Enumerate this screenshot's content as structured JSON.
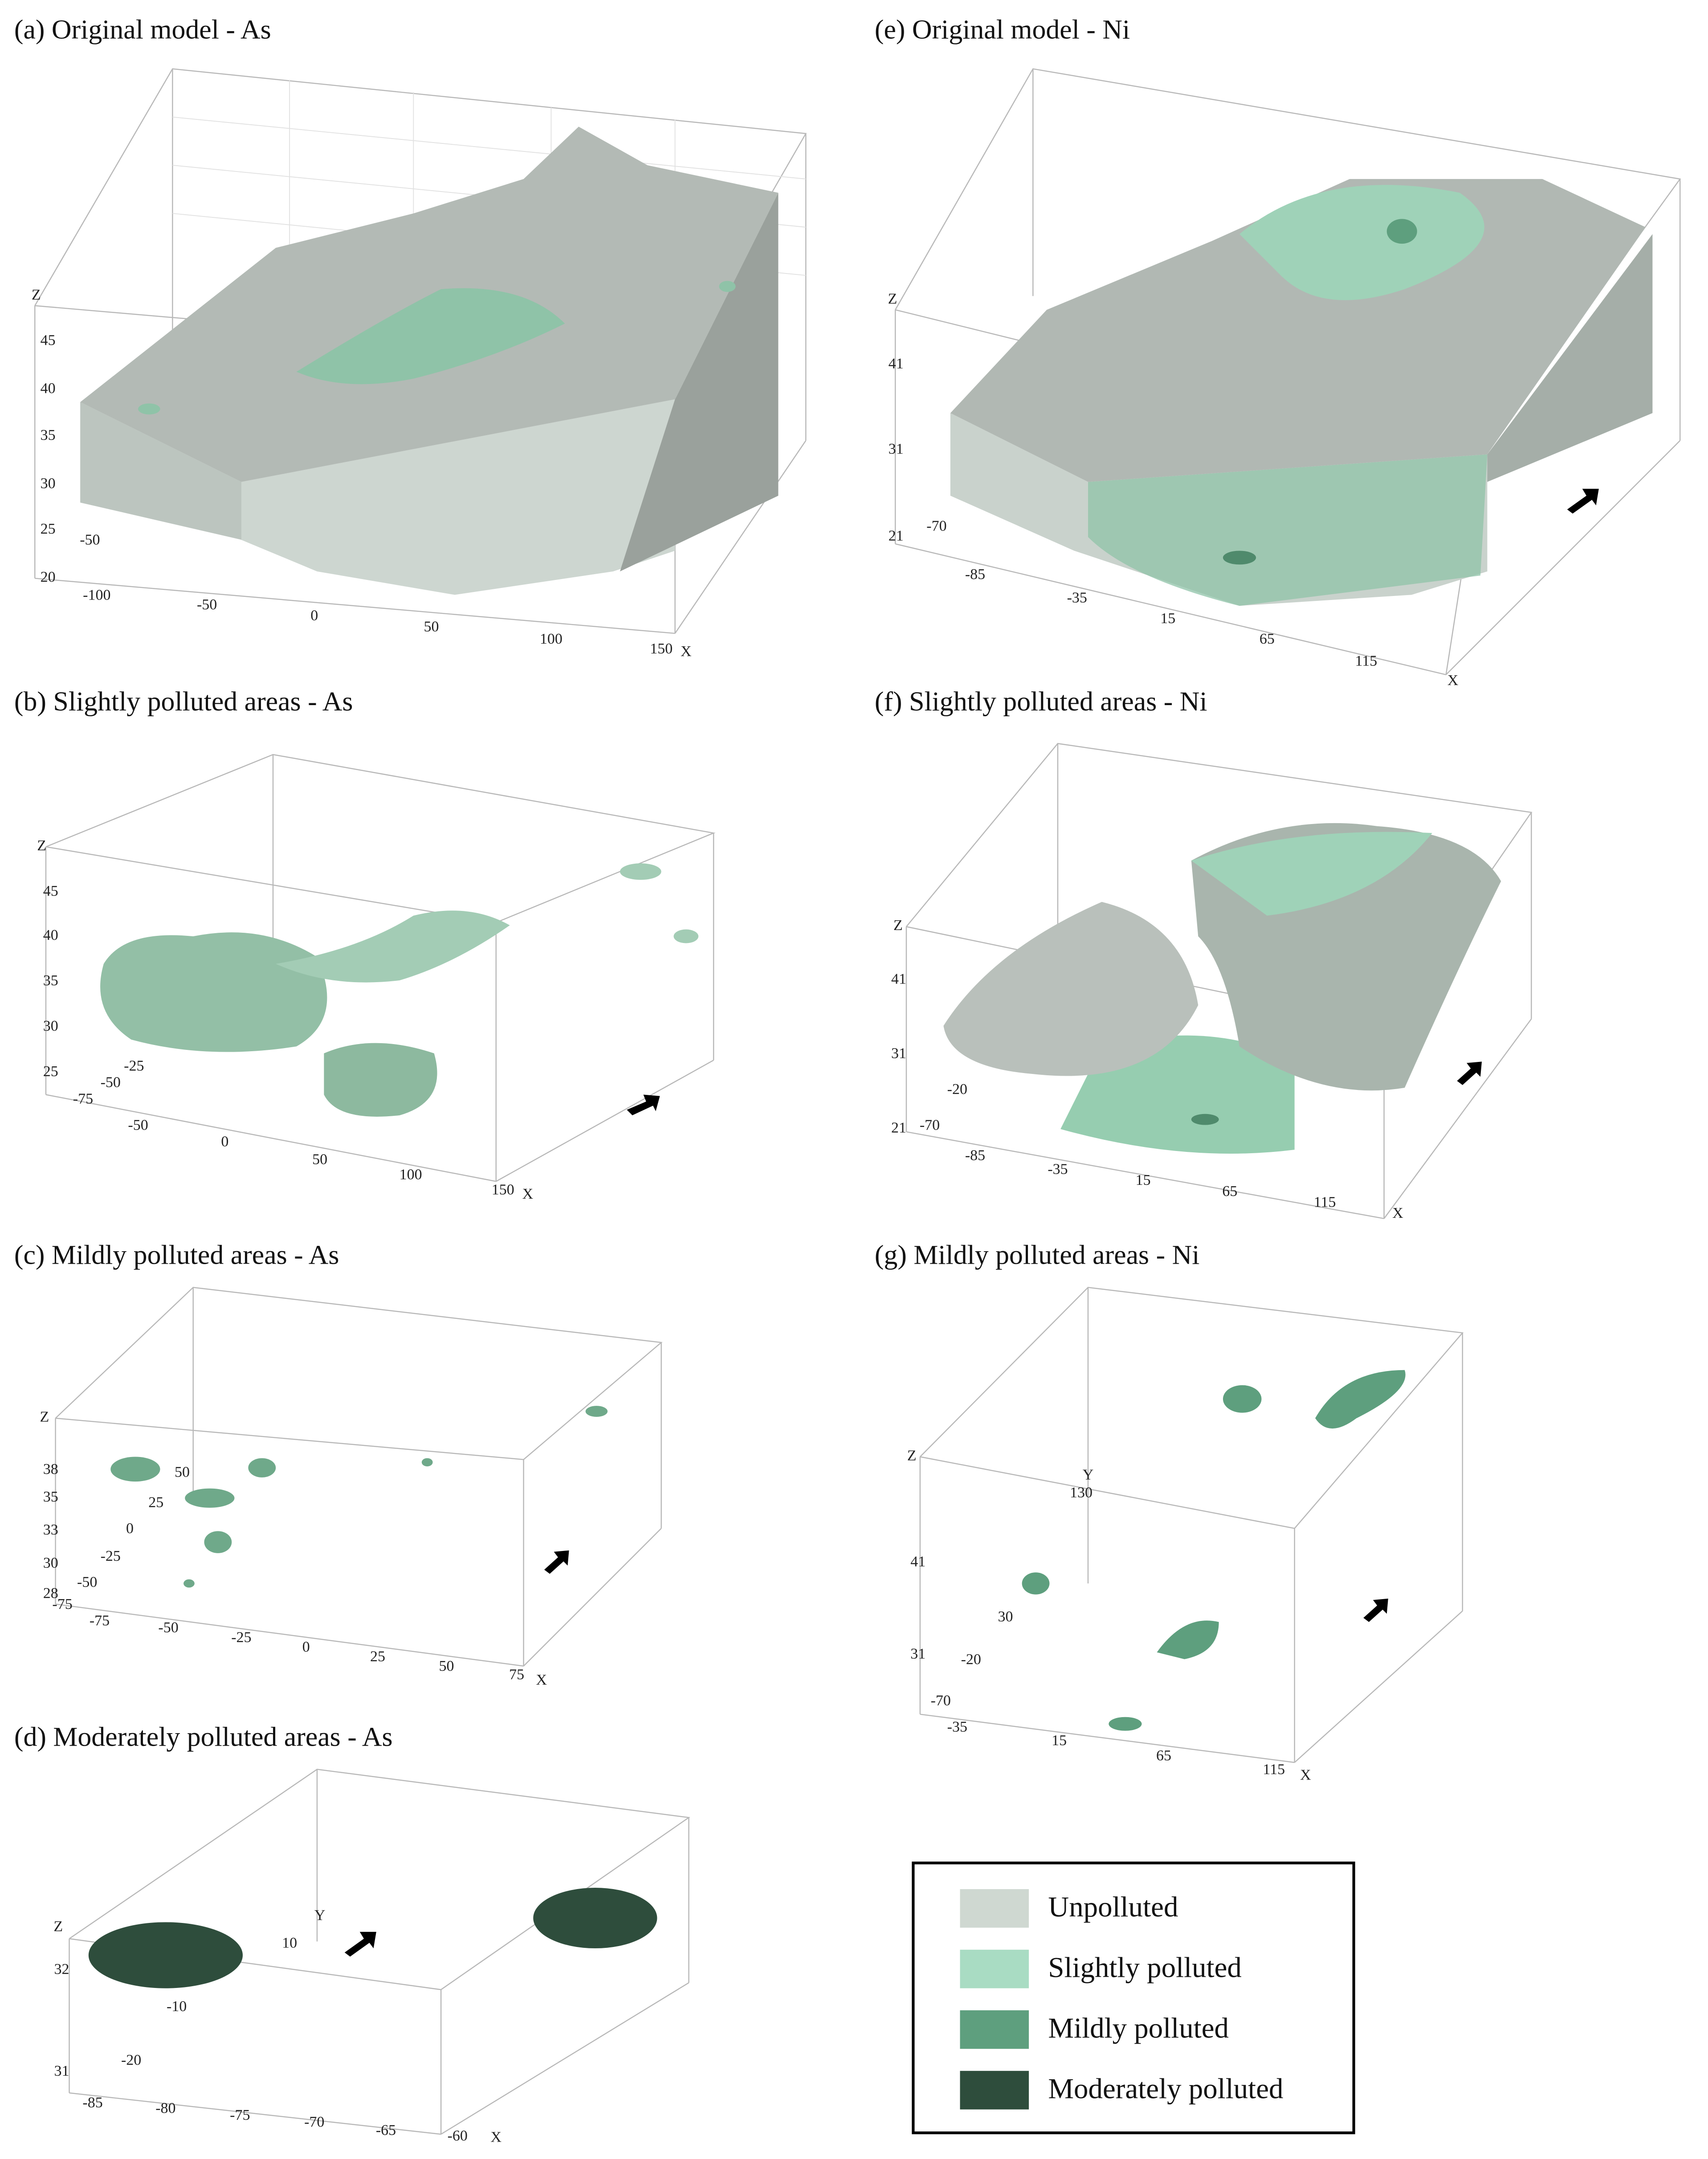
{
  "panels": [
    {
      "title": "(a) Original model - As",
      "z_label": "Z",
      "z_ticks": [
        "45",
        "40",
        "35",
        "30",
        "25",
        "20"
      ],
      "y_ticks": [
        "-50"
      ],
      "x_ticks": [
        "-100",
        "-50",
        "0",
        "50",
        "100",
        "150"
      ],
      "x_label": "X"
    },
    {
      "title": "(b) Slightly polluted areas - As",
      "z_label": "Z",
      "z_ticks": [
        "45",
        "40",
        "35",
        "30",
        "25"
      ],
      "y_ticks": [
        "-25",
        "-50",
        "-75"
      ],
      "x_ticks": [
        "-50",
        "0",
        "50",
        "100",
        "150"
      ],
      "x_label": "X"
    },
    {
      "title": "(c) Mildly polluted areas - As",
      "z_label": "Z",
      "z_ticks": [
        "38",
        "35",
        "33",
        "30",
        "28"
      ],
      "y_ticks": [
        "50",
        "25",
        "0",
        "-25",
        "-50",
        "-75"
      ],
      "x_ticks": [
        "-75",
        "-50",
        "-25",
        "0",
        "25",
        "50",
        "75"
      ],
      "x_label": "X"
    },
    {
      "title": "(d) Moderately polluted areas - As",
      "z_label": "Z",
      "z_ticks": [
        "32",
        "31"
      ],
      "y_label": "Y",
      "y_ticks": [
        "10",
        "-10",
        "-20"
      ],
      "x_ticks": [
        "-85",
        "-80",
        "-75",
        "-70",
        "-65",
        "-60"
      ],
      "x_label": "X"
    },
    {
      "title": "(e) Original model - Ni",
      "z_label": "Z",
      "z_ticks": [
        "41",
        "31",
        "21"
      ],
      "y_ticks": [
        "-70"
      ],
      "x_ticks": [
        "-85",
        "-35",
        "15",
        "65",
        "115"
      ],
      "x_label": "X"
    },
    {
      "title": "(f) Slightly polluted areas - Ni",
      "z_label": "Z",
      "z_ticks": [
        "41",
        "31",
        "21"
      ],
      "y_ticks": [
        "-20",
        "-70"
      ],
      "x_ticks": [
        "-85",
        "-35",
        "15",
        "65",
        "115"
      ],
      "x_label": "X"
    },
    {
      "title": "(g) Mildly polluted areas - Ni",
      "z_label": "Z",
      "z_ticks": [
        "41",
        "31"
      ],
      "y_label": "Y",
      "y_ticks": [
        "130",
        "30",
        "-20",
        "-70"
      ],
      "x_ticks": [
        "-35",
        "15",
        "65",
        "115"
      ],
      "x_label": "X"
    }
  ],
  "legend": {
    "items": [
      "Unpolluted",
      "Slightly polluted",
      "Mildly polluted",
      "Moderately polluted"
    ]
  }
}
